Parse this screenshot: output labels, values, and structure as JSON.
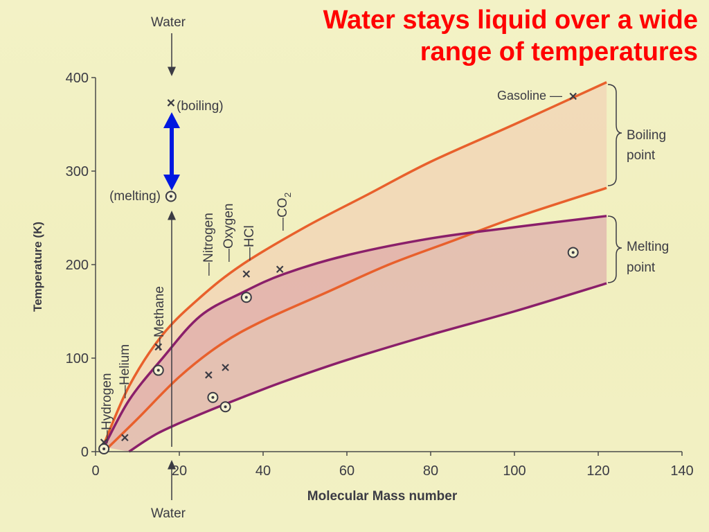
{
  "slide": {
    "title_line1": "Water stays liquid over a wide",
    "title_line2": "range of temperatures",
    "title_color": "#ff0000"
  },
  "chart_data": {
    "type": "line",
    "xlabel": "Molecular Mass number",
    "ylabel": "Temperature (K)",
    "xlim": [
      0,
      140
    ],
    "ylim": [
      0,
      400
    ],
    "xticks": [
      "0",
      "20",
      "40",
      "60",
      "80",
      "100",
      "120",
      "140"
    ],
    "yticks": [
      "0",
      "100",
      "200",
      "300",
      "400"
    ],
    "grid": false,
    "series": [
      {
        "name": "Boiling point",
        "role": "band-upper",
        "color": "#e8602c",
        "x": [
          2,
          8,
          16,
          25,
          35,
          50,
          65,
          80,
          100,
          122
        ],
        "y": [
          8,
          70,
          125,
          165,
          200,
          240,
          275,
          310,
          350,
          395
        ]
      },
      {
        "name": "Boiling point",
        "role": "band-lower",
        "color": "#e8602c",
        "x": [
          2,
          10,
          20,
          30,
          40,
          55,
          70,
          85,
          100,
          122
        ],
        "y": [
          0,
          35,
          80,
          115,
          140,
          170,
          200,
          225,
          250,
          282
        ]
      },
      {
        "name": "Melting point",
        "role": "band-upper",
        "color": "#8a1f6a",
        "x": [
          2,
          8,
          16,
          25,
          35,
          45,
          60,
          80,
          100,
          122
        ],
        "y": [
          5,
          55,
          100,
          145,
          170,
          190,
          210,
          228,
          240,
          252
        ]
      },
      {
        "name": "Melting point",
        "role": "band-lower",
        "color": "#8a1f6a",
        "x": [
          8,
          15,
          25,
          35,
          45,
          60,
          80,
          100,
          122
        ],
        "y": [
          0,
          20,
          40,
          58,
          75,
          98,
          125,
          150,
          180
        ]
      }
    ],
    "boiling_points": [
      {
        "x": 2,
        "y": 10
      },
      {
        "x": 7,
        "y": 15
      },
      {
        "x": 15,
        "y": 112
      },
      {
        "x": 27,
        "y": 82
      },
      {
        "x": 31,
        "y": 90
      },
      {
        "x": 36,
        "y": 190
      },
      {
        "x": 44,
        "y": 195
      },
      {
        "x": 114,
        "y": 380
      },
      {
        "x": 18,
        "y": 373
      }
    ],
    "melting_points": [
      {
        "x": 2,
        "y": 3
      },
      {
        "x": 15,
        "y": 87
      },
      {
        "x": 28,
        "y": 58
      },
      {
        "x": 31,
        "y": 48
      },
      {
        "x": 36,
        "y": 165
      },
      {
        "x": 114,
        "y": 213
      },
      {
        "x": 18,
        "y": 273
      }
    ],
    "annotations": {
      "water_top": "Water",
      "water_bottom": "Water",
      "boiling": "(boiling)",
      "melting": "(melting)",
      "gasoline": "Gasoline —",
      "boiling_point_line1": "Boiling",
      "boiling_point_line2": "point",
      "melting_point_line1": "Melting",
      "melting_point_line2": "point",
      "molecules": [
        "—Hydrogen",
        "—Helium",
        "—Methane",
        "—Nitrogen",
        "—Oxygen",
        "—HCl",
        "—CO"
      ],
      "co2_subscript": "2"
    },
    "highlight_arrow_color": "#0018e0",
    "band_colors": {
      "boiling": "#f2c9b0",
      "melting": "#d99aa6"
    }
  }
}
